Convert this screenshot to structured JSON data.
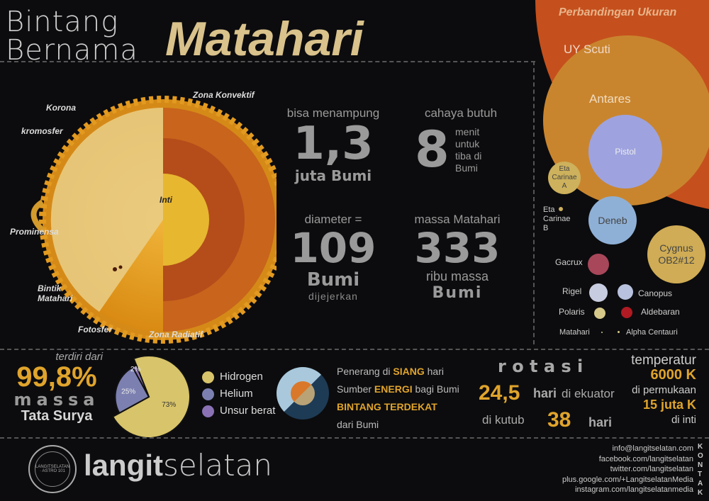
{
  "title": {
    "line1": "Bintang",
    "line2": "Bernama",
    "highlight": "Matahari"
  },
  "sun_diagram": {
    "labels": {
      "korona": "Korona",
      "kromosfer": "kromosfer",
      "prominensa": "Prominensa",
      "bintik": "Bintik Matahari",
      "fotosfer": "Fotosfer",
      "zona_radiatif": "Zona Radiatif",
      "zona_konvektif": "Zona Konvektif",
      "inti": "Inti"
    }
  },
  "stats": {
    "capacity": {
      "pre": "bisa menampung",
      "value": "1,3",
      "post": "juta Bumi"
    },
    "light": {
      "pre": "cahaya butuh",
      "value": "8",
      "post": "menit untuk tiba di Bumi"
    },
    "diameter": {
      "pre": "diameter =",
      "value": "109",
      "unit": "Bumi",
      "post": "dijejerkan"
    },
    "mass": {
      "pre": "massa Matahari",
      "value": "333",
      "post": "ribu massa",
      "unit": "Bumi"
    }
  },
  "size_comparison": {
    "title": "Perbandingan Ukuran",
    "stars": [
      {
        "name": "UY Scuti",
        "color": "#c5501d"
      },
      {
        "name": "Antares",
        "color": "#c9852e"
      },
      {
        "name": "Pistol",
        "color": "#9ea3df"
      },
      {
        "name": "Eta Carinae A",
        "color": "#cdb15c"
      },
      {
        "name": "Eta Carinae B",
        "color": "#cdb15c"
      },
      {
        "name": "Deneb",
        "color": "#8fb0d6"
      },
      {
        "name": "Cygnus OB2#12",
        "color": "#cfac55"
      },
      {
        "name": "Gacrux",
        "color": "#a8475a"
      },
      {
        "name": "Rigel",
        "color": "#c8cce0"
      },
      {
        "name": "Canopus",
        "color": "#b8c2de"
      },
      {
        "name": "Polaris",
        "color": "#d6c98a"
      },
      {
        "name": "Aldebaran",
        "color": "#b01a23"
      },
      {
        "name": "Matahari",
        "color": "#d6c98a"
      },
      {
        "name": "Alpha Centauri",
        "color": "#d6c98a"
      }
    ]
  },
  "composition": {
    "pre": "terdiri dari",
    "value": "99,8%",
    "mid": "massa",
    "post": "Tata Surya"
  },
  "chart_data": {
    "type": "pie",
    "categories": [
      "Hidrogen",
      "Helium",
      "Unsur berat"
    ],
    "values": [
      73,
      25,
      2
    ],
    "labels": [
      "73%",
      "25%",
      "2%"
    ],
    "colors": [
      "#d8c46a",
      "#7c80b0",
      "#8a72b4"
    ],
    "legend": "right"
  },
  "facts": {
    "l1a": "Penerang di ",
    "l1b": "SIANG",
    "l1c": " hari",
    "l2a": "Sumber ",
    "l2b": "ENERGI",
    "l2c": " bagi Bumi",
    "l3": "BINTANG TERDEKAT",
    "l4": "dari Bumi"
  },
  "rotation": {
    "title": "r o t a s i",
    "eq_value": "24,5",
    "eq_unit": "hari",
    "eq_text": "di ekuator",
    "pole_text": "di kutub",
    "pole_value": "38",
    "pole_unit": "hari"
  },
  "temperature": {
    "title": "temperatur",
    "surface_value": "6000 K",
    "surface_text": "di permukaan",
    "core_value": "15 juta K",
    "core_text": "di inti"
  },
  "footer": {
    "logo_ring": "LANGITSELATAN · ASTRO 101",
    "brand_bold": "langit",
    "brand_light": "selatan",
    "contacts": [
      "info@langitselatan.com",
      "facebook.com/langitselatan",
      "twitter.com/langitselatan",
      "plus.google.com/+LangitselatanMedia",
      "instagram.com/langitselatanmedia"
    ],
    "kontak": "KONTAK"
  }
}
